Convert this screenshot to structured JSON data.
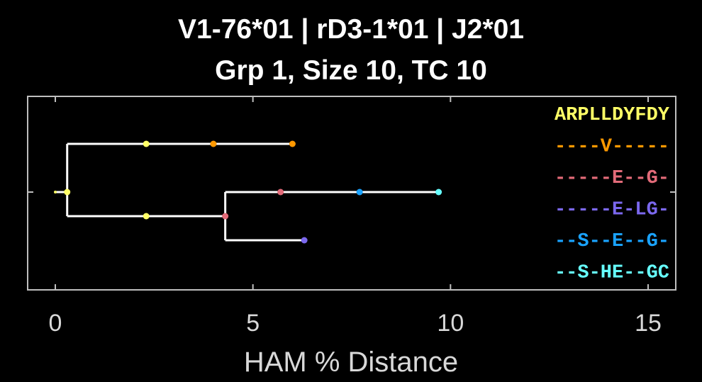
{
  "title_line1": "V1-76*01 | rD3-1*01 | J2*01",
  "title_line2": "Grp 1, Size 10, TC 10",
  "chart_data": {
    "type": "dendrogram",
    "xlabel": "HAM % Distance",
    "xlim": [
      -0.7,
      15.7
    ],
    "xticks": [
      "0",
      "5",
      "10",
      "15"
    ],
    "xtick_values": [
      0,
      5,
      10,
      15
    ],
    "grid": false,
    "sequences": [
      {
        "text": "ARPLLDYFDY",
        "color": "#ffff66"
      },
      {
        "text": "----V-----",
        "color": "#ff9900"
      },
      {
        "text": "-----E--G-",
        "color": "#e36b79"
      },
      {
        "text": "-----E-LG-",
        "color": "#7b68ee"
      },
      {
        "text": "--S--E--G-",
        "color": "#1aa3ff"
      },
      {
        "text": "--S-HE--GC",
        "color": "#66ffff"
      }
    ],
    "branches": [
      {
        "x1": 0.3,
        "x2": 6.0,
        "row": 0
      },
      {
        "x1": 0.3,
        "x2": 4.3,
        "row": 1.5
      },
      {
        "x1": 4.3,
        "x2": 9.7,
        "row": 1
      },
      {
        "x1": 4.3,
        "x2": 6.3,
        "row": 2
      }
    ],
    "vlinks": [
      {
        "x": 0.3,
        "r1": 0,
        "r2": 1.5
      },
      {
        "x": 4.3,
        "r1": 1,
        "r2": 2
      }
    ],
    "root": {
      "x1": 0.0,
      "x2": 0.3,
      "row": 1
    },
    "nodes": [
      {
        "x": 0.0,
        "row": 1,
        "color": "#ffff66",
        "r": 2
      },
      {
        "x": 0.3,
        "row": 1,
        "color": "#ffff66"
      },
      {
        "x": 2.3,
        "row": 0,
        "color": "#ffff66"
      },
      {
        "x": 4.0,
        "row": 0,
        "color": "#ff9900"
      },
      {
        "x": 6.0,
        "row": 0,
        "color": "#ff9900"
      },
      {
        "x": 2.3,
        "row": 1.5,
        "color": "#ffff66"
      },
      {
        "x": 4.3,
        "row": 1.5,
        "color": "#e36b79"
      },
      {
        "x": 5.7,
        "row": 1,
        "color": "#e36b79"
      },
      {
        "x": 7.7,
        "row": 1,
        "color": "#1aa3ff"
      },
      {
        "x": 9.7,
        "row": 1,
        "color": "#66ffff"
      },
      {
        "x": 6.3,
        "row": 2,
        "color": "#7b68ee"
      }
    ]
  }
}
